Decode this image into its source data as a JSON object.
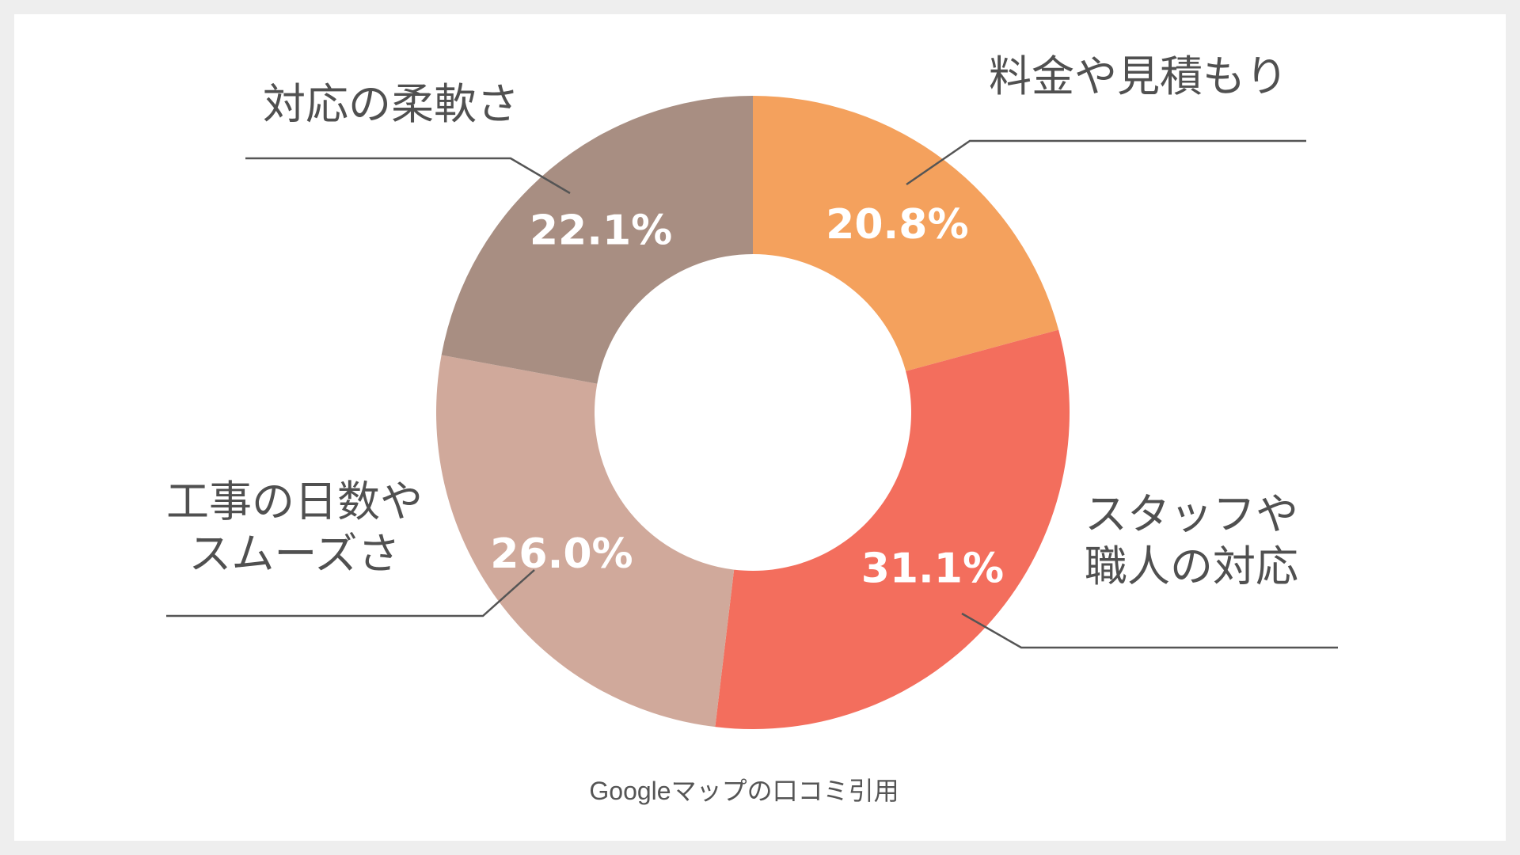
{
  "chart_data": {
    "type": "pie",
    "donut": true,
    "categories": [
      [
        "料金や見積もり"
      ],
      [
        "スタッフや",
        "職人の対応"
      ],
      [
        "工事の日数や",
        "スムーズさ"
      ],
      [
        "対応の柔軟さ"
      ]
    ],
    "values": [
      20.8,
      31.1,
      26.0,
      22.1
    ],
    "value_labels": [
      "20.8%",
      "31.1%",
      "26.0%",
      "22.1%"
    ],
    "colors": [
      "#F4A15D",
      "#F36E5D",
      "#D0A99B",
      "#A88E82"
    ],
    "legend": "none"
  },
  "source_note": "Googleマップの口コミ引用"
}
